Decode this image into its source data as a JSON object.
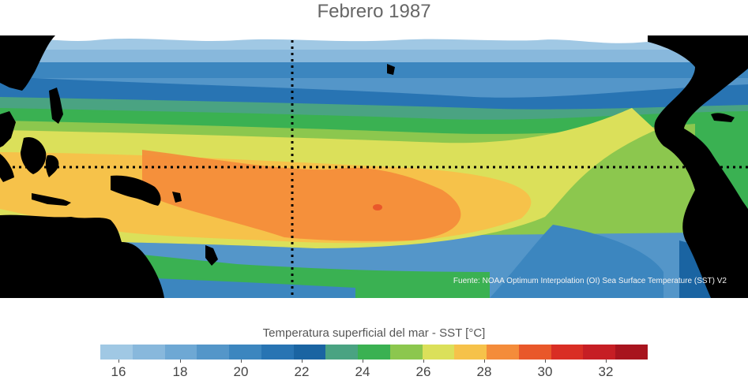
{
  "title": "Febrero 1987",
  "source": "Fuente: NOAA Optimum Interpolation (OI) Sea Surface Temperature (SST) V2",
  "colorbar": {
    "title": "Temperatura superficial del mar - SST  [°C]",
    "ticks": [
      "16",
      "18",
      "20",
      "22",
      "24",
      "26",
      "28",
      "30",
      "32"
    ],
    "colors": [
      "#a0c8e4",
      "#88b8dc",
      "#6ea8d4",
      "#5496c9",
      "#3c86bf",
      "#2874b3",
      "#1a64a2",
      "#4aa382",
      "#3ab152",
      "#8cc74e",
      "#dbe05a",
      "#f6c24a",
      "#f48c3a",
      "#e9582a",
      "#d92e24",
      "#c61e24",
      "#a8141e"
    ]
  },
  "colors": {
    "land": "#000000",
    "missing": "#ffffff",
    "dotted_lines": "#000000"
  }
}
